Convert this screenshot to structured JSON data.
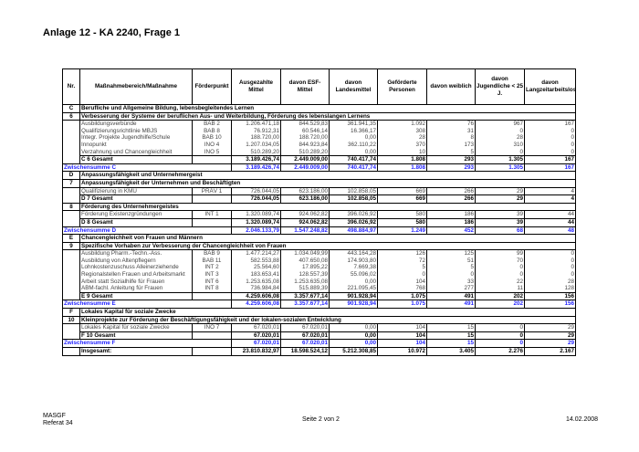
{
  "title": "Anlage 12 - KA 2240, Frage 1",
  "headers": [
    "Nr.",
    "Maßnahmebereich/Maßnahme",
    "Förderpunkt",
    "Ausgezahlte Mittel",
    "davon ESF-Mittel",
    "davon Landesmittel",
    "Geförderte Personen",
    "davon weiblich",
    "davon Jugendliche < 25 J.",
    "davon Langzeitarbeitslose"
  ],
  "rows": [
    {
      "type": "sec",
      "nr": "C",
      "label": "Berufliche und Allgemeine Bildung, lebensbegleitendes Lernen"
    },
    {
      "type": "sec",
      "nr": "6",
      "label": "Verbesserung der Systeme der beruflichen Aus- und Weiterbildung, Förderung des lebenslangen Lernens"
    },
    {
      "type": "item",
      "label": "Ausbildungsverbünde",
      "fp": "BAB 2",
      "v": [
        "1.206.471,18",
        "844.529,83",
        "361.941,35",
        "1.092",
        "76",
        "967",
        "167"
      ]
    },
    {
      "type": "item",
      "label": "Qualifizierungsrichtlinie MBJS",
      "fp": "BAB 8",
      "v": [
        "76.912,31",
        "60.546,14",
        "16.366,17",
        "308",
        "31",
        "0",
        "0"
      ]
    },
    {
      "type": "item",
      "label": "Integr. Projekte Jugendhilfe/Schule",
      "fp": "BAB 10",
      "v": [
        "188.720,00",
        "188.720,00",
        "0,00",
        "28",
        "8",
        "28",
        "0"
      ]
    },
    {
      "type": "item",
      "label": "Innopunkt",
      "fp": "INO 4",
      "v": [
        "1.207.034,05",
        "844.923,84",
        "362.110,22",
        "370",
        "173",
        "310",
        "0"
      ]
    },
    {
      "type": "item",
      "label": "Verzahnung und Chancengleichheit",
      "fp": "INO 5",
      "v": [
        "510.289,20",
        "510.289,20",
        "0,00",
        "10",
        "5",
        "0",
        "0"
      ]
    },
    {
      "type": "tot",
      "label": "C 6 Gesamt",
      "v": [
        "3.189.426,74",
        "2.449.009,00",
        "740.417,74",
        "1.808",
        "293",
        "1.305",
        "167"
      ]
    },
    {
      "type": "zw",
      "label": "Zwischensumme C",
      "v": [
        "3.189.426,74",
        "2.449.009,00",
        "740.417,74",
        "1.808",
        "293",
        "1.305",
        "167"
      ]
    },
    {
      "type": "sec",
      "nr": "D",
      "label": "Anpassungsfähigkeit und Unternehmergeist"
    },
    {
      "type": "sec",
      "nr": "7",
      "label": "Anpassungsfähigkeit der Unternehmen und Beschäftigten"
    },
    {
      "type": "item",
      "label": "Qualifizierung in KMU",
      "fp": "PRÄV 1",
      "v": [
        "726.044,05",
        "623.186,00",
        "102.858,05",
        "669",
        "266",
        "29",
        "4"
      ]
    },
    {
      "type": "tot",
      "label": "D 7 Gesamt",
      "v": [
        "726.044,05",
        "623.186,00",
        "102.858,05",
        "669",
        "266",
        "29",
        "4"
      ]
    },
    {
      "type": "sec",
      "nr": "8",
      "label": "Förderung des Unternehmergeistes"
    },
    {
      "type": "item",
      "label": "Förderung Existenzgründungen",
      "fp": "INT 1",
      "v": [
        "1.320.089,74",
        "924.062,82",
        "396.026,92",
        "580",
        "186",
        "39",
        "44"
      ]
    },
    {
      "type": "tot",
      "label": "D 8 Gesamt",
      "v": [
        "1.320.089,74",
        "924.062,82",
        "396.026,92",
        "580",
        "186",
        "39",
        "44"
      ]
    },
    {
      "type": "zw",
      "label": "Zwischensumme D",
      "v": [
        "2.046.133,79",
        "1.547.248,82",
        "498.884,97",
        "1.249",
        "452",
        "68",
        "48"
      ]
    },
    {
      "type": "sec",
      "nr": "E",
      "label": "Chancengleichheit von Frauen und Männern"
    },
    {
      "type": "sec",
      "nr": "9",
      "label": "Spezifische Vorhaben zur Verbesserung der Chancengleichheit von Frauen"
    },
    {
      "type": "item",
      "label": "Ausbildung Pharm.-Techn.-Ass.",
      "fp": "BAB 9",
      "v": [
        "1.477.214,27",
        "1.034.049,99",
        "443.164,28",
        "126",
        "125",
        "99",
        "0"
      ]
    },
    {
      "type": "item",
      "label": "Ausbildung von Altenpflegern",
      "fp": "BAB 11",
      "v": [
        "582.553,88",
        "407.650,08",
        "174.903,80",
        "72",
        "51",
        "70",
        "0"
      ]
    },
    {
      "type": "item",
      "label": "Lohnkostenzuschuss Alleinerziehende",
      "fp": "INT 2",
      "v": [
        "25.564,60",
        "17.895,22",
        "7.669,38",
        "5",
        "5",
        "0",
        "0"
      ]
    },
    {
      "type": "item",
      "label": "Regionalstellen Frauen und Arbeitsmarkt",
      "fp": "INT 3",
      "v": [
        "183.653,41",
        "128.557,39",
        "55.096,02",
        "0",
        "0",
        "0",
        "0"
      ]
    },
    {
      "type": "item",
      "label": "Arbeit statt Sozialhilfe für Frauen",
      "fp": "INT 6",
      "v": [
        "1.253.635,08",
        "1.253.635,08",
        "0,00",
        "104",
        "33",
        "22",
        "28"
      ]
    },
    {
      "type": "item",
      "label": "ABM-fachl. Anleitung für Frauen",
      "fp": "INT 8",
      "v": [
        "736.984,84",
        "515.889,39",
        "221.095,45",
        "768",
        "277",
        "11",
        "128"
      ]
    },
    {
      "type": "tot",
      "label": "E 9 Gesamt",
      "v": [
        "4.259.606,08",
        "3.357.677,14",
        "901.928,94",
        "1.075",
        "491",
        "202",
        "156"
      ]
    },
    {
      "type": "zw",
      "label": "Zwischensumme E",
      "v": [
        "4.259.606,08",
        "3.357.677,14",
        "901.928,94",
        "1.075",
        "491",
        "202",
        "156"
      ]
    },
    {
      "type": "sec",
      "nr": "F",
      "label": "Lokales Kapital für soziale Zwecke"
    },
    {
      "type": "sec",
      "nr": "10",
      "label": "Kleinprojekte zur Förderung der Beschäftigungsfähigkeit und der lokalen-sozialen Entwicklung"
    },
    {
      "type": "item",
      "label": "Lokales Kapital für soziale Zwecke",
      "fp": "INO 7",
      "v": [
        "67.020,01",
        "67.020,01",
        "0,00",
        "104",
        "15",
        "0",
        "29"
      ]
    },
    {
      "type": "tot",
      "label": "F 10 Gesamt",
      "v": [
        "67.020,01",
        "67.020,01",
        "0,00",
        "104",
        "15",
        "0",
        "29"
      ]
    },
    {
      "type": "zw",
      "label": "Zwischensumme F",
      "v": [
        "67.020,01",
        "67.020,01",
        "0,00",
        "104",
        "15",
        "0",
        "29"
      ]
    },
    {
      "type": "grand",
      "label": "Insgesamt:",
      "v": [
        "23.810.832,97",
        "18.598.524,12",
        "5.212.308,85",
        "10.972",
        "3.405",
        "2.276",
        "2.167"
      ]
    }
  ],
  "footer": {
    "org_line1": "MASGF",
    "org_line2": "Referat 34",
    "page": "Seite 2 von 2",
    "date": "14.02.2008"
  },
  "colors": {
    "subtotal": "#1f1fff",
    "item_text": "#444444"
  }
}
